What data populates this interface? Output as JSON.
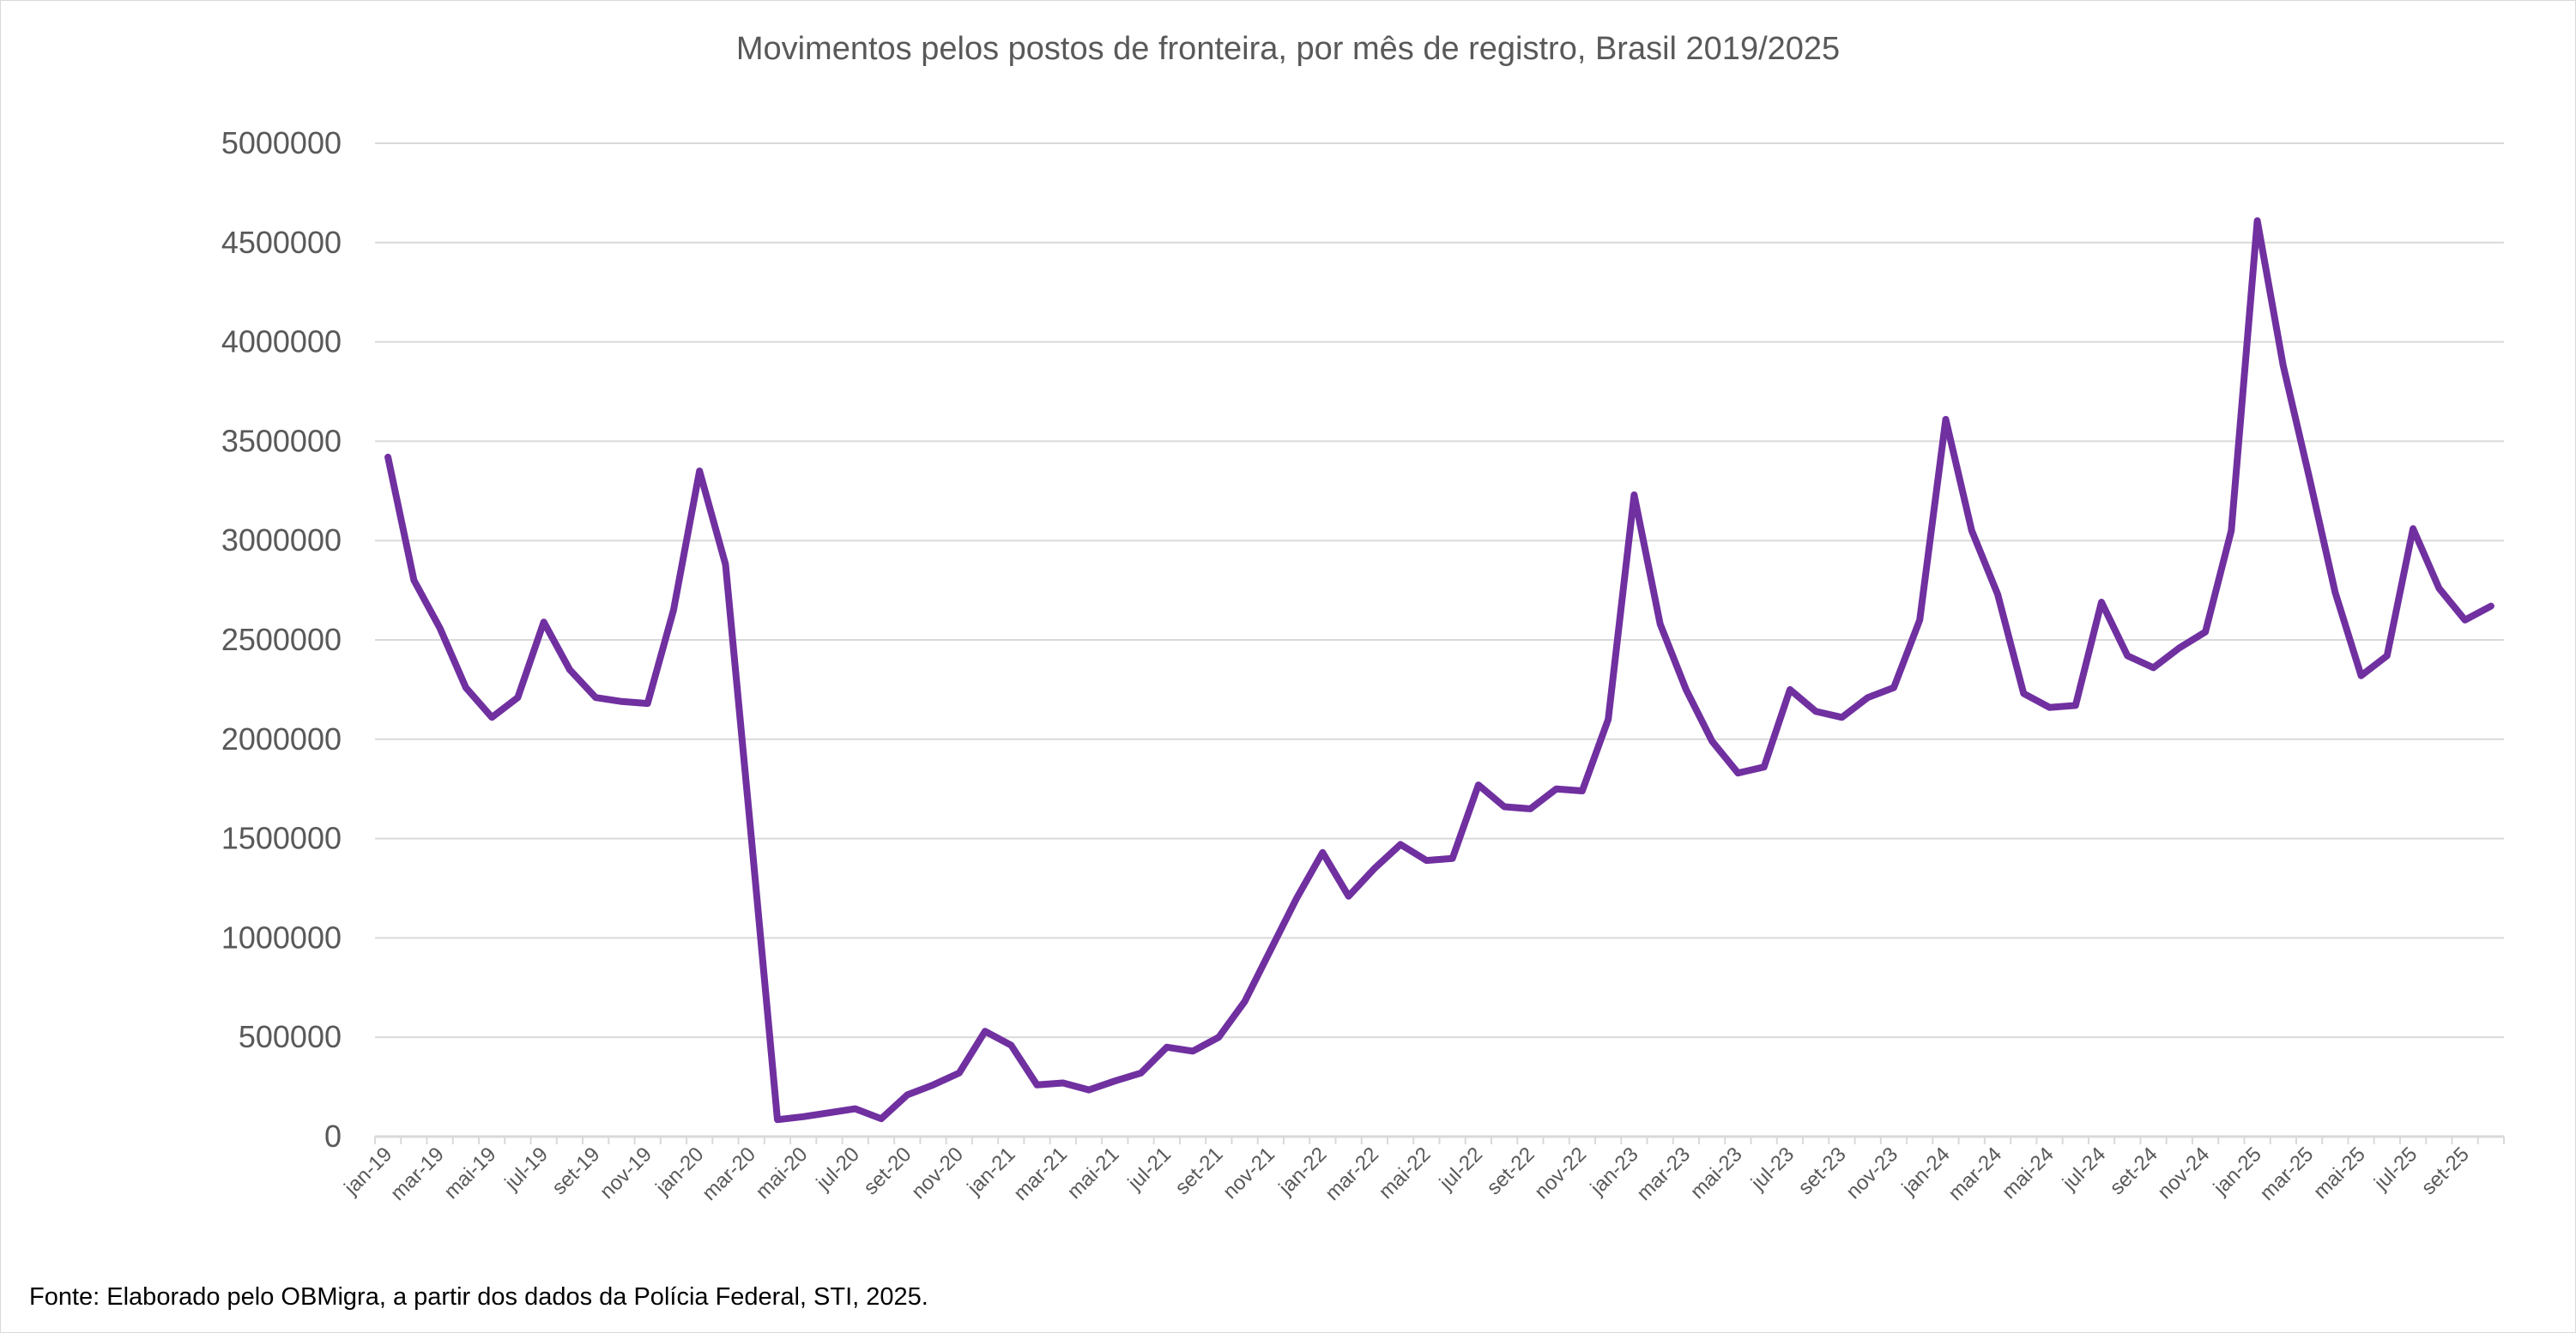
{
  "chart_data": {
    "type": "line",
    "title": "Movimentos pelos postos de fronteira, por mês de registro, Brasil 2019/2025",
    "xlabel": "",
    "ylabel": "",
    "ylim": [
      0,
      5000000
    ],
    "yticks": [
      "0",
      "500000",
      "1000000",
      "1500000",
      "2000000",
      "2500000",
      "3000000",
      "3500000",
      "4000000",
      "4500000",
      "5000000"
    ],
    "grid": true,
    "legend": "none",
    "line_color": "#7030A0",
    "categories": [
      "jan-19",
      "fev-19",
      "mar-19",
      "abr-19",
      "mai-19",
      "jun-19",
      "jul-19",
      "ago-19",
      "set-19",
      "out-19",
      "nov-19",
      "dez-19",
      "jan-20",
      "fev-20",
      "mar-20",
      "abr-20",
      "mai-20",
      "jun-20",
      "jul-20",
      "ago-20",
      "set-20",
      "out-20",
      "nov-20",
      "dez-20",
      "jan-21",
      "fev-21",
      "mar-21",
      "abr-21",
      "mai-21",
      "jun-21",
      "jul-21",
      "ago-21",
      "set-21",
      "out-21",
      "nov-21",
      "dez-21",
      "jan-22",
      "fev-22",
      "mar-22",
      "abr-22",
      "mai-22",
      "jun-22",
      "jul-22",
      "ago-22",
      "set-22",
      "out-22",
      "nov-22",
      "dez-22",
      "jan-23",
      "fev-23",
      "mar-23",
      "abr-23",
      "mai-23",
      "jun-23",
      "jul-23",
      "ago-23",
      "set-23",
      "out-23",
      "nov-23",
      "dez-23",
      "jan-24",
      "fev-24",
      "mar-24",
      "abr-24",
      "mai-24",
      "jun-24",
      "jul-24",
      "ago-24",
      "set-24",
      "out-24",
      "nov-24",
      "dez-24",
      "jan-25",
      "fev-25",
      "mar-25",
      "abr-25",
      "mai-25",
      "jun-25",
      "jul-25",
      "ago-25",
      "set-25",
      "out-25"
    ],
    "tick_labels_shown": "every other category, starting at jan-19",
    "values": [
      3420000,
      2800000,
      2560000,
      2260000,
      2110000,
      2210000,
      2590000,
      2350000,
      2210000,
      2190000,
      2180000,
      2650000,
      3350000,
      2880000,
      1500000,
      85000,
      100000,
      120000,
      140000,
      90000,
      210000,
      260000,
      320000,
      530000,
      460000,
      260000,
      270000,
      235000,
      280000,
      320000,
      450000,
      430000,
      500000,
      680000,
      940000,
      1200000,
      1430000,
      1210000,
      1350000,
      1470000,
      1390000,
      1400000,
      1770000,
      1660000,
      1650000,
      1750000,
      1740000,
      2100000,
      3230000,
      2580000,
      2250000,
      1990000,
      1830000,
      1860000,
      2250000,
      2140000,
      2110000,
      2210000,
      2260000,
      2600000,
      3610000,
      3050000,
      2730000,
      2230000,
      2160000,
      2170000,
      2690000,
      2420000,
      2360000,
      2460000,
      2540000,
      3050000,
      4610000,
      3880000,
      3320000,
      2740000,
      2320000,
      2420000,
      3060000,
      2760000,
      2600000,
      2670000
    ]
  },
  "footer": {
    "source": "Fonte: Elaborado pelo OBMigra, a partir dos dados da Polícia Federal, STI, 2025."
  }
}
